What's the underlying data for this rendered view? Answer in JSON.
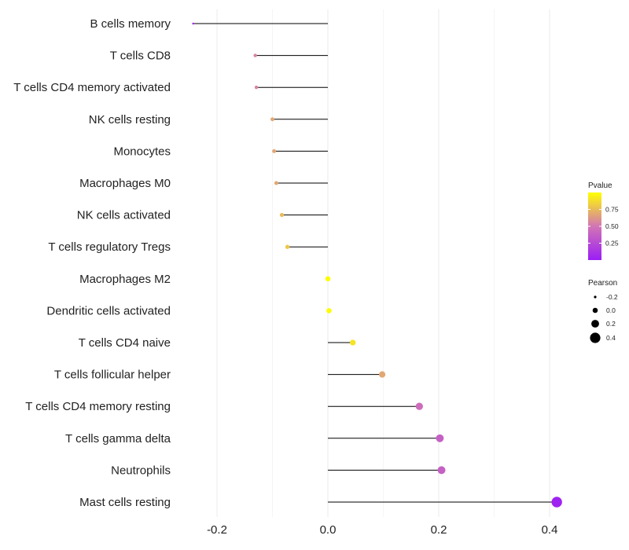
{
  "chart_data": {
    "type": "lollipop",
    "title": "",
    "xlabel": "",
    "ylabel": "",
    "xlim": [
      -0.3,
      0.43
    ],
    "x_ticks": [
      -0.2,
      0.0,
      0.2,
      0.4
    ],
    "x_tick_labels": [
      "-0.2",
      "0.0",
      "0.2",
      "0.4"
    ],
    "grid": true,
    "categories": [
      "B cells memory",
      "T cells CD8",
      "T cells CD4 memory activated",
      "NK cells resting",
      "Monocytes",
      "Macrophages M0",
      "NK cells activated",
      "T cells regulatory  Tregs",
      "Macrophages M2",
      "Dendritic cells activated",
      "T cells CD4 naive",
      "T cells follicular helper",
      "T cells CD4 memory resting",
      "T cells gamma delta",
      "Neutrophils",
      "Mast cells resting"
    ],
    "pearson": [
      -0.243,
      -0.131,
      -0.129,
      -0.1,
      -0.097,
      -0.093,
      -0.083,
      -0.073,
      0.0,
      0.002,
      0.045,
      0.098,
      0.165,
      0.202,
      0.205,
      0.413
    ],
    "pvalue": [
      0.05,
      0.55,
      0.55,
      0.68,
      0.68,
      0.68,
      0.75,
      0.8,
      0.99,
      0.99,
      0.9,
      0.68,
      0.45,
      0.38,
      0.38,
      0.03
    ],
    "legend_color": {
      "title": "Pvalue",
      "ticks": [
        0.25,
        0.5,
        0.75
      ],
      "tick_labels": [
        "0.25",
        "0.50",
        "0.75"
      ],
      "range": [
        0.0,
        1.0
      ],
      "low_color": "#9b1ef5",
      "mid_color": "#d275b4",
      "high_color": "#ffff00"
    },
    "legend_size": {
      "title": "Pearson",
      "values": [
        -0.2,
        0.0,
        0.2,
        0.4
      ],
      "labels": [
        "-0.2",
        "0.0",
        "0.2",
        "0.4"
      ]
    },
    "legend_position": "right"
  }
}
